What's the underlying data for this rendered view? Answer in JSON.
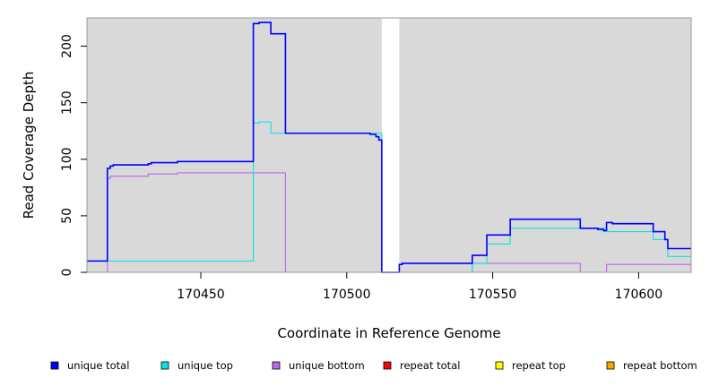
{
  "chart_data": {
    "type": "line",
    "xlabel": "Coordinate in Reference Genome",
    "ylabel": "Read Coverage Depth",
    "xlim": [
      170411,
      170618
    ],
    "ylim": [
      0,
      225
    ],
    "x_ticks": [
      170450,
      170500,
      170550,
      170600
    ],
    "y_ticks": [
      0,
      50,
      100,
      150,
      200
    ],
    "background_shading": [
      {
        "x0": 170411,
        "x1": 170512,
        "color": "#d9d9d9"
      },
      {
        "x0": 170518,
        "x1": 170618,
        "color": "#d9d9d9"
      }
    ],
    "legend_position": "bottom",
    "series": [
      {
        "name": "unique total",
        "color": "#0000ff",
        "x": [
          170411,
          170418,
          170418,
          170419,
          170419,
          170420,
          170420,
          170432,
          170432,
          170433,
          170433,
          170442,
          170442,
          170468,
          170468,
          170470,
          170470,
          170474,
          170474,
          170479,
          170479,
          170508,
          170508,
          170510,
          170510,
          170511,
          170511,
          170512,
          170512,
          170518,
          170518,
          170519,
          170519,
          170543,
          170543,
          170548,
          170548,
          170556,
          170556,
          170580,
          170580,
          170586,
          170586,
          170588,
          170588,
          170589,
          170589,
          170591,
          170591,
          170605,
          170605,
          170609,
          170609,
          170610,
          170610,
          170618
        ],
        "y": [
          10,
          10,
          92,
          92,
          94,
          94,
          95,
          95,
          96,
          96,
          97,
          97,
          98,
          98,
          220,
          220,
          221,
          221,
          211,
          211,
          123,
          123,
          122,
          122,
          120,
          120,
          117,
          117,
          0,
          0,
          7,
          7,
          8,
          8,
          15,
          15,
          33,
          33,
          47,
          47,
          39,
          39,
          38,
          38,
          37,
          37,
          44,
          44,
          43,
          43,
          36,
          36,
          29,
          29,
          21,
          21
        ]
      },
      {
        "name": "unique top",
        "color": "#00e5e5",
        "x": [
          170411,
          170468,
          170468,
          170470,
          170470,
          170474,
          170474,
          170479,
          170479,
          170512,
          170512,
          170518,
          170518,
          170543,
          170543,
          170548,
          170548,
          170556,
          170556,
          170588,
          170588,
          170605,
          170605,
          170610,
          170610,
          170618
        ],
        "y": [
          10,
          10,
          132,
          132,
          133,
          133,
          123,
          123,
          123,
          123,
          0,
          0,
          0,
          0,
          8,
          8,
          25,
          25,
          39,
          39,
          36,
          36,
          29,
          29,
          14,
          14
        ]
      },
      {
        "name": "unique bottom",
        "color": "#bb66ee",
        "x": [
          170411,
          170418,
          170418,
          170419,
          170419,
          170432,
          170432,
          170442,
          170442,
          170479,
          170479,
          170518,
          170518,
          170543,
          170543,
          170580,
          170580,
          170589,
          170589,
          170618
        ],
        "y": [
          0,
          0,
          83,
          83,
          85,
          85,
          87,
          87,
          88,
          88,
          0,
          0,
          0,
          0,
          8,
          8,
          0,
          0,
          7,
          7
        ]
      },
      {
        "name": "repeat total",
        "color": "#ff0000",
        "x": [
          170411,
          170618
        ],
        "y": [
          0,
          0
        ]
      },
      {
        "name": "repeat top",
        "color": "#ffff00",
        "x": [
          170411,
          170618
        ],
        "y": [
          0,
          0
        ]
      },
      {
        "name": "repeat bottom",
        "color": "#ffa500",
        "x": [
          170411,
          170618
        ],
        "y": [
          0,
          0
        ]
      }
    ]
  }
}
